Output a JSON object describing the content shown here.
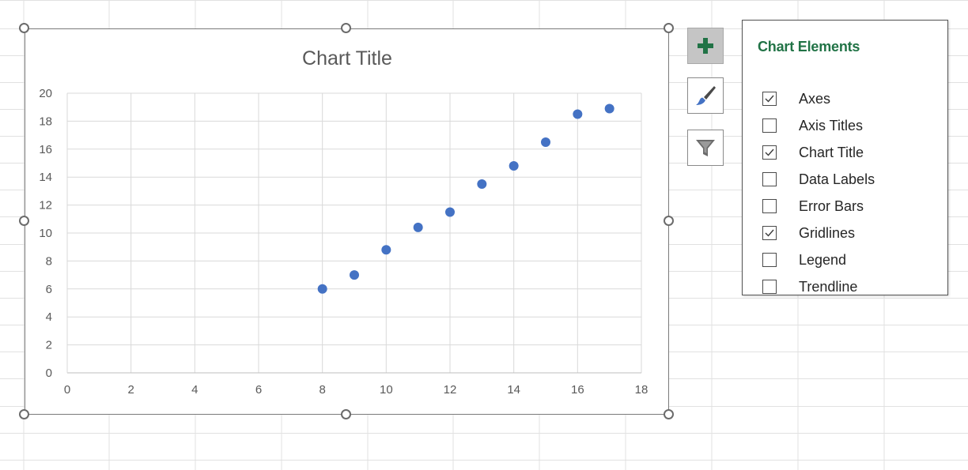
{
  "chart_data": {
    "type": "scatter",
    "title": "Chart Title",
    "xlabel": "",
    "ylabel": "",
    "xlim": [
      0,
      18
    ],
    "ylim": [
      0,
      20
    ],
    "xticks": [
      "0",
      "2",
      "4",
      "6",
      "8",
      "10",
      "12",
      "14",
      "16",
      "18"
    ],
    "yticks": [
      "0",
      "2",
      "4",
      "6",
      "8",
      "10",
      "12",
      "14",
      "16",
      "18",
      "20"
    ],
    "grid": true,
    "legend": false,
    "marker_color": "#4472C4",
    "points": [
      {
        "x": 8,
        "y": 6.0
      },
      {
        "x": 9,
        "y": 7.0
      },
      {
        "x": 10,
        "y": 8.8
      },
      {
        "x": 11,
        "y": 10.4
      },
      {
        "x": 12,
        "y": 11.5
      },
      {
        "x": 13,
        "y": 13.5
      },
      {
        "x": 14,
        "y": 14.8
      },
      {
        "x": 15,
        "y": 16.5
      },
      {
        "x": 16,
        "y": 18.5
      },
      {
        "x": 17,
        "y": 18.9
      }
    ]
  },
  "side_buttons": {
    "elements_icon": "plus-icon",
    "styles_icon": "paintbrush-icon",
    "filters_icon": "funnel-icon",
    "accent_color": "#217346"
  },
  "chart_elements_panel": {
    "title": "Chart Elements",
    "options": [
      {
        "label": "Axes",
        "checked": true
      },
      {
        "label": "Axis Titles",
        "checked": false
      },
      {
        "label": "Chart Title",
        "checked": true
      },
      {
        "label": "Data Labels",
        "checked": false
      },
      {
        "label": "Error Bars",
        "checked": false
      },
      {
        "label": "Gridlines",
        "checked": true
      },
      {
        "label": "Legend",
        "checked": false
      },
      {
        "label": "Trendline",
        "checked": false
      }
    ]
  }
}
